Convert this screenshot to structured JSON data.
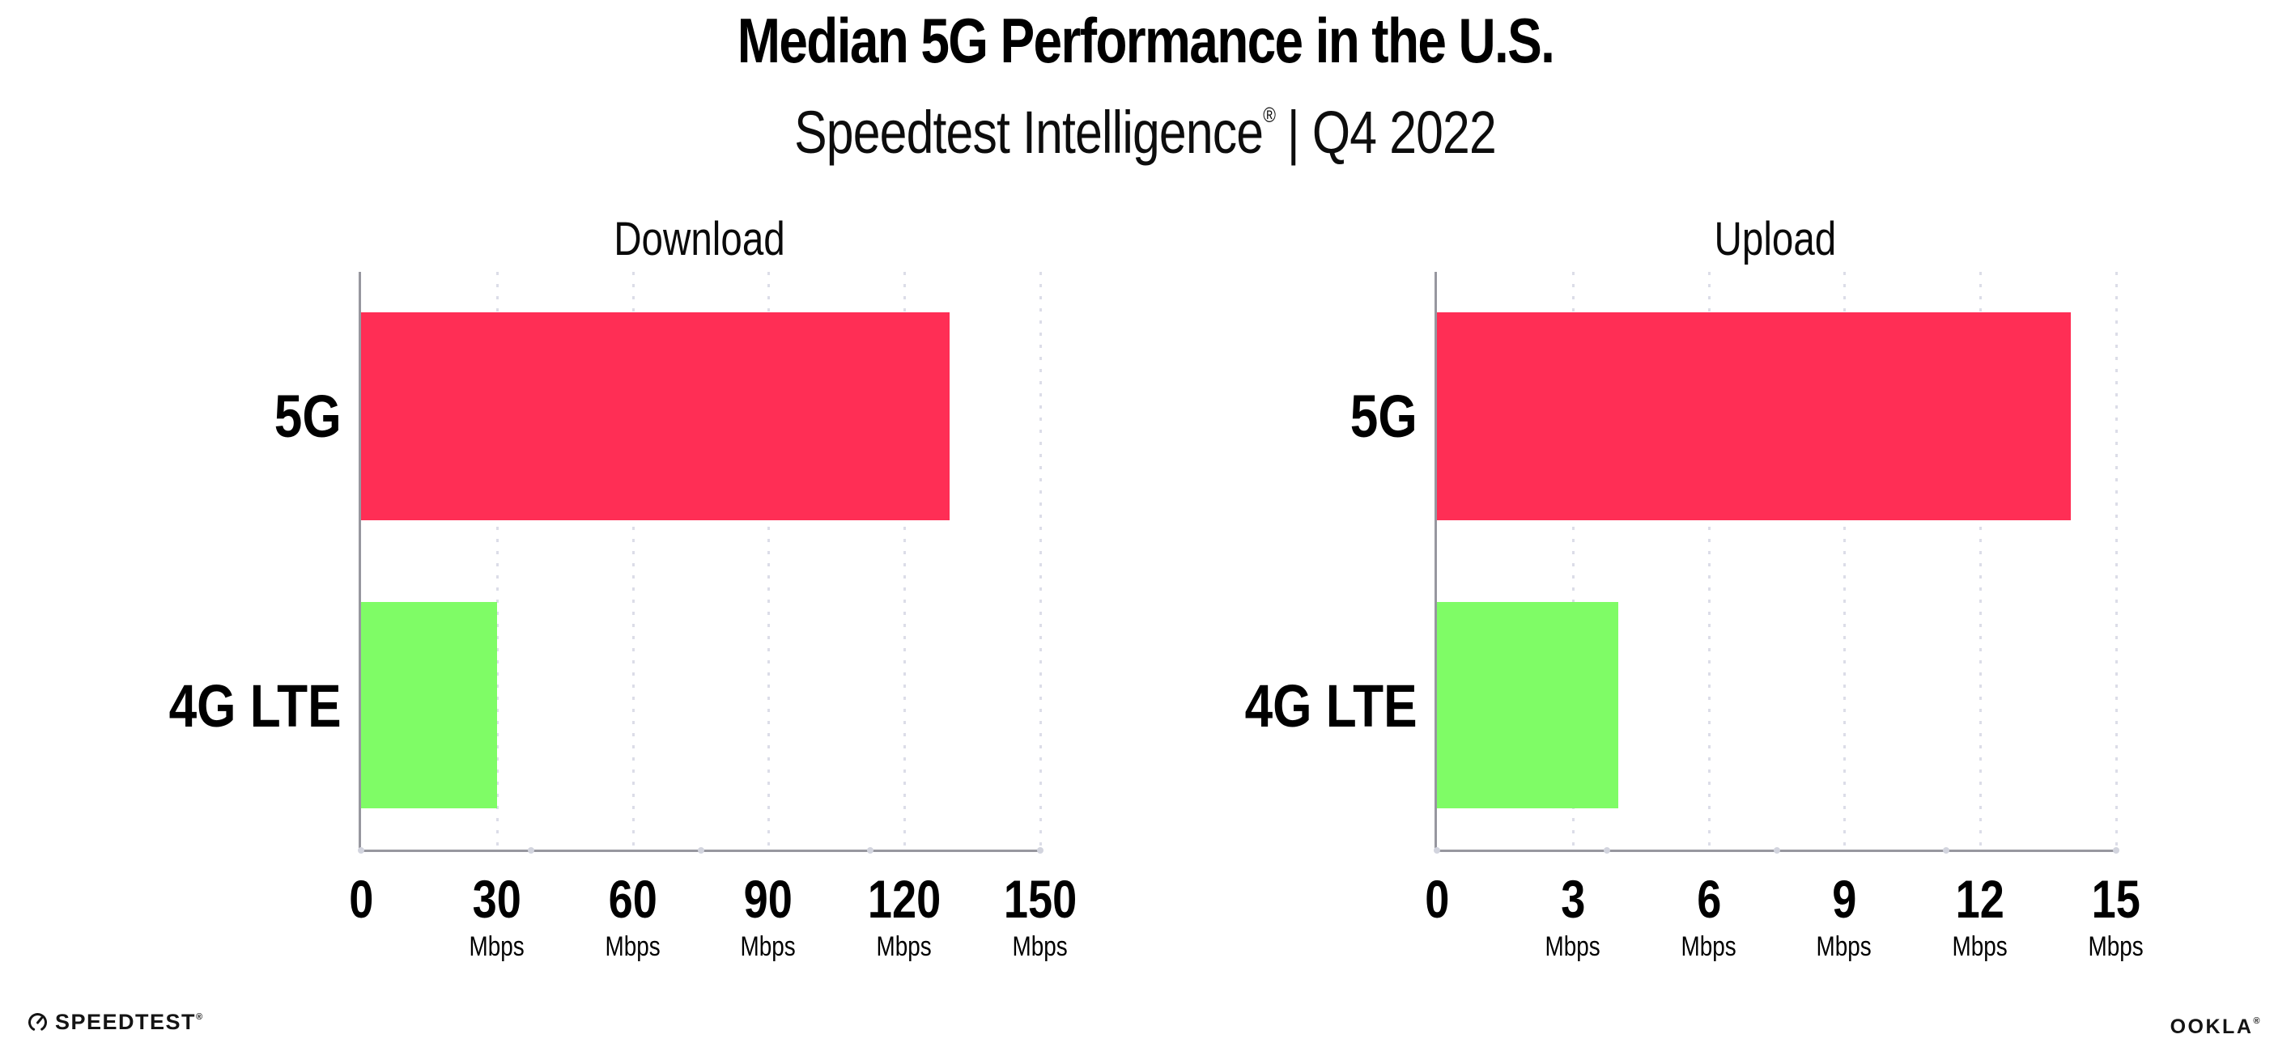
{
  "header": {
    "title": "Median 5G Performance in the U.S.",
    "subtitle_brand": "Speedtest Intelligence",
    "subtitle_registered": "®",
    "subtitle_period": "| Q4 2022"
  },
  "colors": {
    "bar_5g": "#FF2E55",
    "bar_4g_lte": "#7FFC66",
    "axis": "#97979F",
    "gridline": "#DCDDE8",
    "axis_dot": "#D2D4DE",
    "text": "#000000"
  },
  "chart_data": [
    {
      "type": "bar",
      "orientation": "horizontal",
      "title": "Download",
      "categories": [
        "5G",
        "4G LTE"
      ],
      "values": [
        130,
        30
      ],
      "unit": "Mbps",
      "xlabel": "",
      "ylabel": "",
      "xlim": [
        0,
        150
      ],
      "xticks": [
        0,
        30,
        60,
        90,
        120,
        150
      ],
      "series_colors": [
        "#FF2E55",
        "#7FFC66"
      ],
      "grid": "dotted vertical gridlines at each tick",
      "legend": "none"
    },
    {
      "type": "bar",
      "orientation": "horizontal",
      "title": "Upload",
      "categories": [
        "5G",
        "4G LTE"
      ],
      "values": [
        14,
        4
      ],
      "unit": "Mbps",
      "xlabel": "",
      "ylabel": "",
      "xlim": [
        0,
        15
      ],
      "xticks": [
        0,
        3,
        6,
        9,
        12,
        15
      ],
      "series_colors": [
        "#FF2E55",
        "#7FFC66"
      ],
      "grid": "dotted vertical gridlines at each tick",
      "legend": "none"
    }
  ],
  "footer": {
    "speedtest_label": "SPEEDTEST",
    "speedtest_registered": "®",
    "ookla_label": "OOKLA",
    "ookla_registered": "®"
  }
}
